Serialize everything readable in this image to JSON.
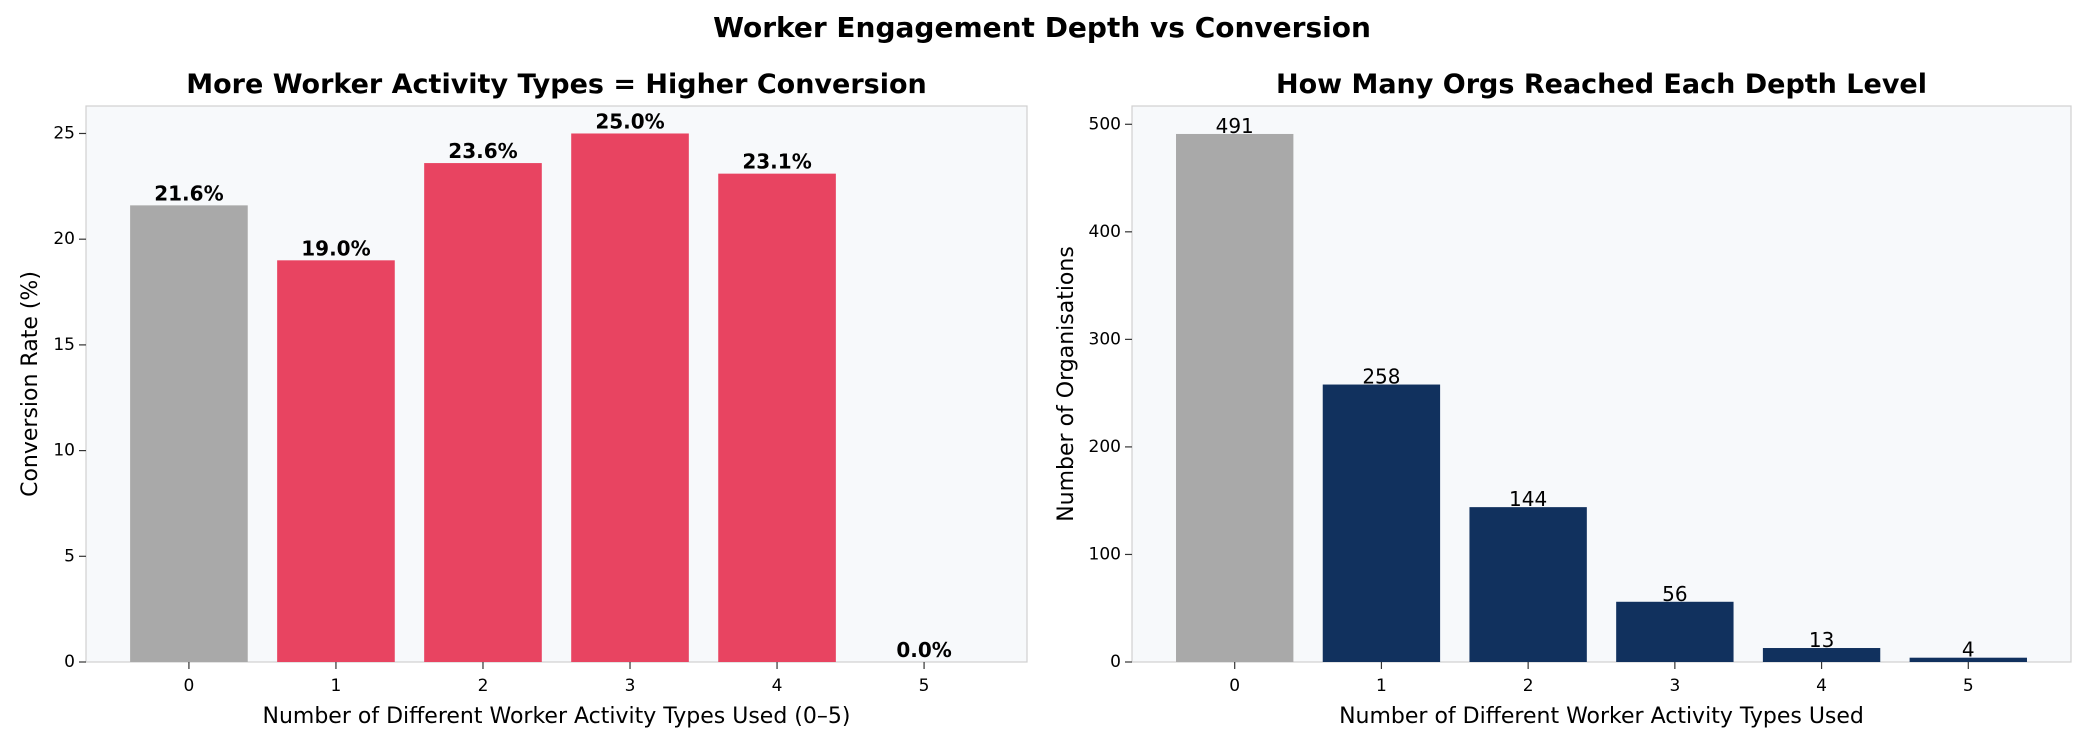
{
  "figure": {
    "title": "Worker Engagement Depth vs Conversion"
  },
  "chart_data": [
    {
      "type": "bar",
      "title": "More Worker Activity Types = Higher Conversion",
      "xlabel": "Number of Different Worker Activity Types Used (0–5)",
      "ylabel": "Conversion Rate (%)",
      "categories": [
        "0",
        "1",
        "2",
        "3",
        "4",
        "5"
      ],
      "values": [
        21.6,
        19.0,
        23.6,
        25.0,
        23.1,
        0.0
      ],
      "data_labels": [
        "21.6%",
        "19.0%",
        "23.6%",
        "25.0%",
        "23.1%",
        "0.0%"
      ],
      "colors": [
        "#a9a9a9",
        "#e84461",
        "#e84461",
        "#e84461",
        "#e84461",
        "#e84461"
      ],
      "ylim": [
        0,
        26.3
      ],
      "yticks": [
        0,
        5,
        10,
        15,
        20,
        25
      ],
      "grid": false,
      "background": "#f7f9fb"
    },
    {
      "type": "bar",
      "title": "How Many Orgs Reached Each Depth Level",
      "xlabel": "Number of Different Worker Activity Types Used",
      "ylabel": "Number of Organisations",
      "categories": [
        "0",
        "1",
        "2",
        "3",
        "4",
        "5"
      ],
      "values": [
        491,
        258,
        144,
        56,
        13,
        4
      ],
      "data_labels": [
        "491",
        "258",
        "144",
        "56",
        "13",
        "4"
      ],
      "colors": [
        "#a9a9a9",
        "#11315e",
        "#11315e",
        "#11315e",
        "#11315e",
        "#11315e"
      ],
      "ylim": [
        0,
        517
      ],
      "yticks": [
        0,
        100,
        200,
        300,
        400,
        500
      ],
      "grid": false,
      "background": "#f7f9fb"
    }
  ]
}
